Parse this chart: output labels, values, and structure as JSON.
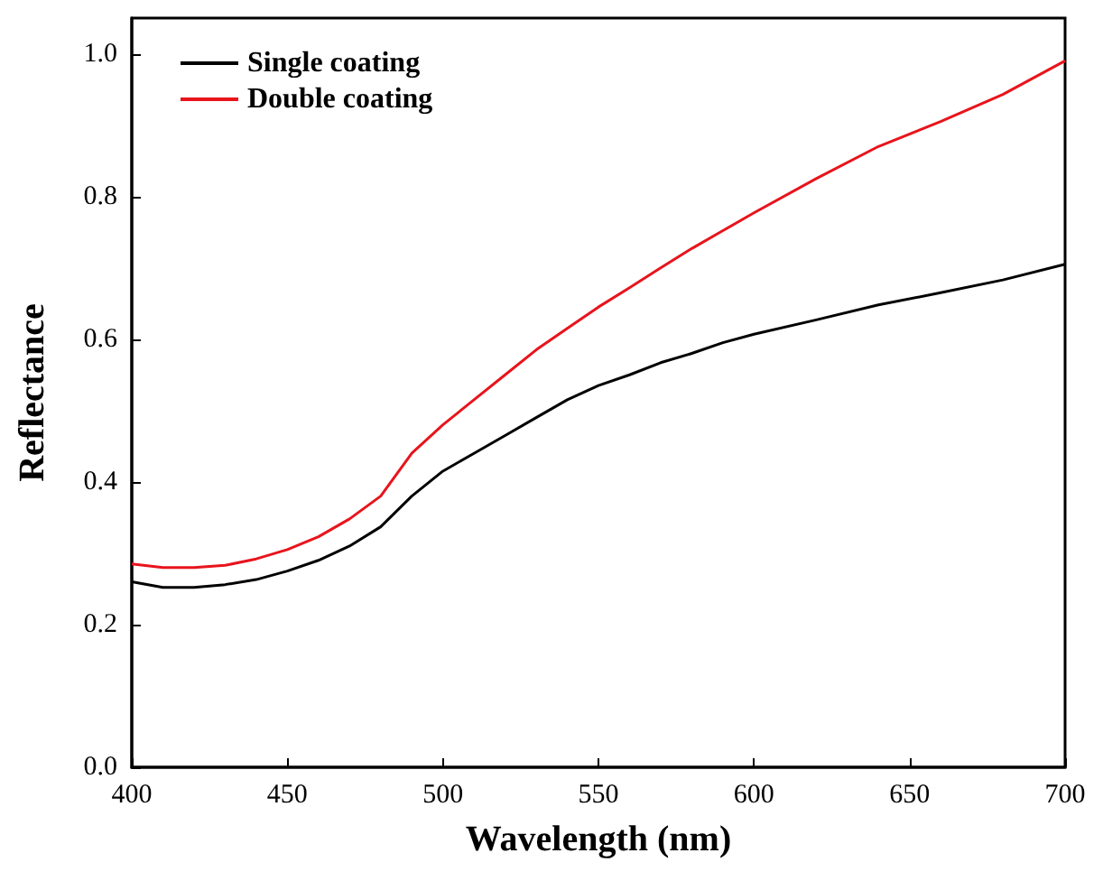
{
  "chart_data": {
    "type": "line",
    "xlabel": "Wavelength (nm)",
    "ylabel": "Reflectance",
    "x": [
      400,
      410,
      420,
      430,
      440,
      450,
      460,
      470,
      480,
      490,
      500,
      510,
      520,
      530,
      540,
      550,
      560,
      570,
      580,
      590,
      600,
      620,
      640,
      660,
      680,
      700
    ],
    "series": [
      {
        "name": "Single coating",
        "color": "#000000",
        "values": [
          0.26,
          0.252,
          0.252,
          0.256,
          0.263,
          0.275,
          0.29,
          0.31,
          0.337,
          0.38,
          0.415,
          0.44,
          0.465,
          0.49,
          0.515,
          0.535,
          0.55,
          0.567,
          0.58,
          0.595,
          0.607,
          0.627,
          0.648,
          0.665,
          0.683,
          0.705
        ]
      },
      {
        "name": "Double coating",
        "color": "#e8141c",
        "values": [
          0.285,
          0.28,
          0.28,
          0.283,
          0.292,
          0.305,
          0.323,
          0.348,
          0.38,
          0.44,
          0.48,
          0.515,
          0.55,
          0.585,
          0.615,
          0.645,
          0.672,
          0.7,
          0.727,
          0.752,
          0.777,
          0.825,
          0.87,
          0.905,
          0.943,
          0.99
        ]
      }
    ],
    "xlim": [
      400,
      700
    ],
    "xticks": [
      400,
      450,
      500,
      550,
      600,
      650,
      700
    ],
    "ylim": [
      0,
      1.05
    ],
    "yticks": [
      {
        "value": 0,
        "label": "0.0"
      },
      {
        "value": 0.2,
        "label": "0.2"
      },
      {
        "value": 0.4,
        "label": "0.4"
      },
      {
        "value": 0.6,
        "label": "0.6"
      },
      {
        "value": 0.8,
        "label": "0.8"
      },
      {
        "value": 1,
        "label": "1.0"
      }
    ],
    "legend": "top left",
    "grid": false,
    "marker": "none",
    "line_style": "solid"
  }
}
